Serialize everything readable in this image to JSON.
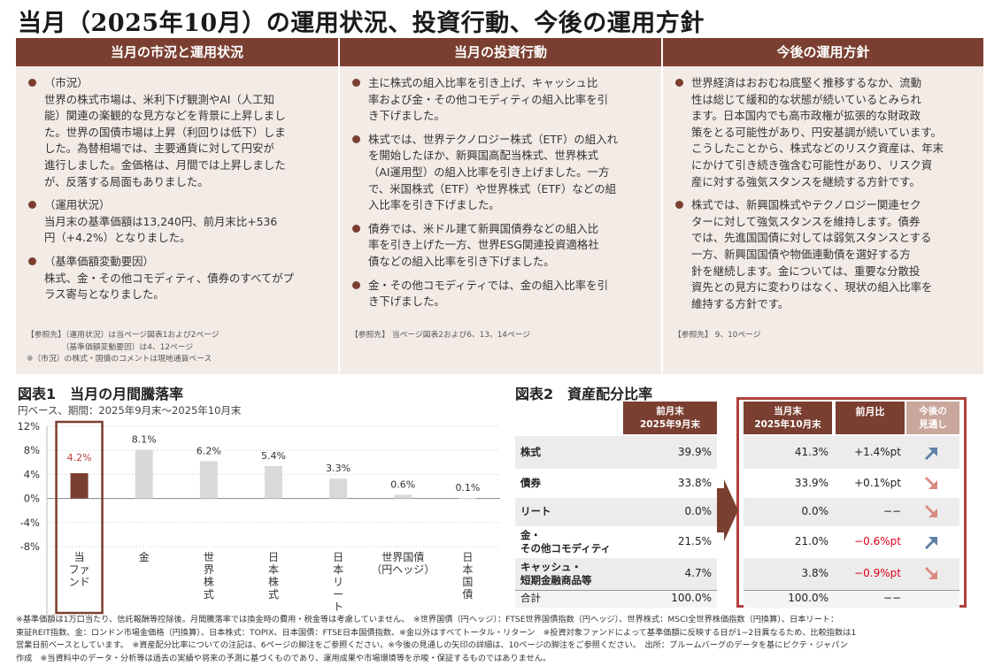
{
  "title": "当月（2025年10月）の運用状況、投資行動、今後の運用方針",
  "columns": [
    {
      "heading": "当月の市況と運用状況",
      "bullets": [
        {
          "label": "（市況）",
          "text": "世界の株式市場は、米利下げ観測やAI（人工知\n能）関連の楽観的な見方などを背景に上昇しまし\nた。世界の国債市場は上昇（利回りは低下）しま\nした。為替相場では、主要通貨に対して円安が\n進行しました。金価格は、月間では上昇しました\nが、反落する局面もありました。"
        },
        {
          "label": "（運用状況）",
          "text": "当月末の基準価額は13,240円、前月末比+536\n円（+4.2%）となりました。"
        },
        {
          "label": "（基準価額変動要因）",
          "text": "株式、金・その他コモディティ、債券のすべてがプ\nラス寄与となりました。"
        }
      ],
      "ref": "【参照先】（運用状況）は当ページ図表1および2ページ\n　　　　　（基準価額変動要因）は4、12ページ\n※（市況）の株式・国債のコメントは現地通貨ベース"
    },
    {
      "heading": "当月の投資行動",
      "bullets": [
        {
          "label": "",
          "text": "主に株式の組入比率を引き上げ、キャッシュ比\n率および金・その他コモディティの組入比率を引\nき下げました。"
        },
        {
          "label": "",
          "text": "株式では、世界テクノロジー株式（ETF）の組入れ\nを開始したほか、新興国高配当株式、世界株式\n（AI運用型）の組入比率を引き上げました。一方\nで、米国株式（ETF）や世界株式（ETF）などの組\n入比率を引き下げました。"
        },
        {
          "label": "",
          "text": "債券では、米ドル建て新興国債券などの組入比\n率を引き上げた一方、世界ESG関連投資適格社\n債などの組入比率を引き下げました。"
        },
        {
          "label": "",
          "text": "金・その他コモディティでは、金の組入比率を引\nき下げました。"
        }
      ],
      "ref": "【参照先】 当ページ図表2および6、13、14ページ"
    },
    {
      "heading": "今後の運用方針",
      "bullets": [
        {
          "label": "",
          "text": "世界経済はおおむね底堅く推移するなか、流動\n性は総じて緩和的な状態が続いているとみられ\nます。日本国内でも高市政権が拡張的な財政政\n策をとる可能性があり、円安基調が続いています。\nこうしたことから、株式などのリスク資産は、年末\nにかけて引き続き強含む可能性があり、リスク資\n産に対する強気スタンスを継続する方針です。"
        },
        {
          "label": "",
          "text": "株式では、新興国株式やテクノロジー関連セク\nターに対して強気スタンスを維持します。債券\nでは、先進国国債に対しては弱気スタンスとする\n一方、新興国国債や物価連動債を選好する方\n針を継続します。金については、重要な分散投\n資先との見方に変わりはなく、現状の組入比率を\n維持する方針です。"
        }
      ],
      "ref": "【参照先】 9、10ページ"
    }
  ],
  "fig1": {
    "title": "図表1　当月の月間騰落率",
    "subtitle": "円ベース、期間：2025年9月末～2025年10月末"
  },
  "chart_data": {
    "type": "bar",
    "categories": [
      "当ファンド",
      "金",
      "世界株式",
      "日本株式",
      "日本リート",
      "世界国債（円ヘッジ）",
      "日本国債"
    ],
    "category_labels": [
      "当\nファ\nンド",
      "金",
      "世\n界\n株\n式",
      "日\n本\n株\n式",
      "日\n本\nリ\nー\nト",
      "世界国債\n（円ヘッジ）",
      "日\n本\n国\n債"
    ],
    "values": [
      4.2,
      8.1,
      6.2,
      5.4,
      3.3,
      0.6,
      0.1
    ],
    "value_labels": [
      "4.2%",
      "8.1%",
      "6.2%",
      "5.4%",
      "3.3%",
      "0.6%",
      "0.1%"
    ],
    "yticks": [
      12,
      8,
      4,
      0,
      -4,
      -8
    ],
    "ytick_labels": [
      "12%",
      "8%",
      "4%",
      "0%",
      "-4%",
      "-8%"
    ],
    "ylim": [
      -8,
      12
    ],
    "colors": {
      "highlight": "#7a3f30",
      "default": "#d9d9d9",
      "frame": "#7a3f30"
    }
  },
  "fig2": {
    "title": "図表2　資産配分比率",
    "header": {
      "prev": "前月末\n2025年9月末",
      "curr": "当月末\n2025年10月末",
      "diff": "前月比",
      "outlook": "今後の\n見通し"
    },
    "rows": [
      {
        "name": "株式",
        "prev": "39.9%",
        "curr": "41.3%",
        "diff": "+1.4%pt",
        "diff_neg": false,
        "outlook": "up"
      },
      {
        "name": "債券",
        "prev": "33.8%",
        "curr": "33.9%",
        "diff": "+0.1%pt",
        "diff_neg": false,
        "outlook": "down"
      },
      {
        "name": "リート",
        "prev": "0.0%",
        "curr": "0.0%",
        "diff": "−−",
        "diff_neg": false,
        "outlook": "down"
      },
      {
        "name": "金・\nその他コモディティ",
        "prev": "21.5%",
        "curr": "21.0%",
        "diff": "−0.6%pt",
        "diff_neg": true,
        "outlook": "up"
      },
      {
        "name": "キャッシュ・\n短期金融商品等",
        "prev": "4.7%",
        "curr": "3.8%",
        "diff": "−0.9%pt",
        "diff_neg": true,
        "outlook": "down"
      },
      {
        "name": "合計",
        "prev": "100.0%",
        "curr": "100.0%",
        "diff": "−−",
        "diff_neg": false,
        "outlook": ""
      }
    ],
    "colors": {
      "header": "#7a3f30",
      "highlight_frame": "#b0413e",
      "neg": "#e0001b",
      "up_arrow": "#5f7fa6",
      "down_arrow": "#d98a80"
    }
  },
  "footnote": "※基準価額は1万口当たり、信託報酬等控除後。月間騰落率では換金時の費用・税金等は考慮していません。　※世界国債（円ヘッジ）：FTSE世界国債指数（円ヘッジ）、世界株式：MSCI全世界株価指数（円換算）、日本リート：\n東証REIT指数、金：ロンドン市場金価格（円換算）、日本株式：TOPIX、日本国債：FTSE日本国債指数、※金以外はすべてトータル・リターン　※投資対象ファンドによって基準価額に反映する日が1−2日異なるため、比較指数は1\n営業日前ベースとしています。　※資産配分比率についての注記は、6ページの脚注をご参照ください。※今後の見通しの矢印の詳細は、10ページの脚注をご参照ください。　出所：ブルームバーグのデータを基にピクテ・ジャパン\n作成　※当資料中のデータ・分析等は過去の実績や将来の予測に基づくものであり、運用成果や市場環境等を示唆・保証するものではありません。"
}
